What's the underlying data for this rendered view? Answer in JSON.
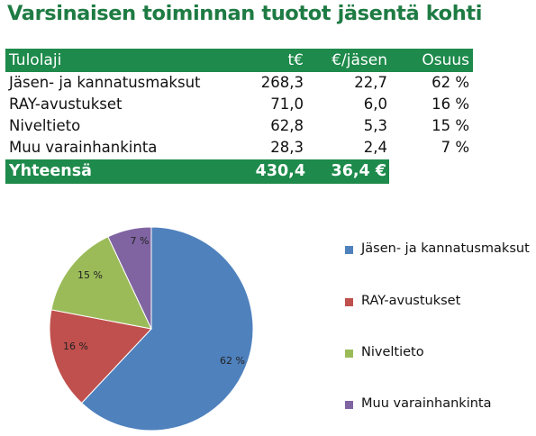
{
  "title": "Varsinaisen toiminnan tuotot jäsentä kohti",
  "table": {
    "headers": [
      "Tulolaji",
      "t€",
      "€/jäsen",
      "Osuus"
    ],
    "rows": [
      [
        "Jäsen- ja kannatusmaksut",
        "268,3",
        "22,7",
        "62 %"
      ],
      [
        "RAY-avustukset",
        "71,0",
        "6,0",
        "16 %"
      ],
      [
        "Niveltieto",
        "62,8",
        "5,3",
        "15 %"
      ],
      [
        "Muu varainhankinta",
        "28,3",
        "2,4",
        "7 %"
      ]
    ],
    "total": [
      "Yhteensä",
      "430,4",
      "36,4 €"
    ]
  },
  "chart_data": {
    "type": "pie",
    "categories": [
      "Jäsen- ja kannatusmaksut",
      "RAY-avustukset",
      "Niveltieto",
      "Muu varainhankinta"
    ],
    "values": [
      62,
      16,
      15,
      7
    ],
    "labels": [
      "62 %",
      "16 %",
      "15 %",
      "7 %"
    ],
    "colors": [
      "#4f81bd",
      "#c0504d",
      "#9bbb59",
      "#8064a2"
    ],
    "start_angle": "12 o'clock, clockwise",
    "legend_placement": "right"
  }
}
